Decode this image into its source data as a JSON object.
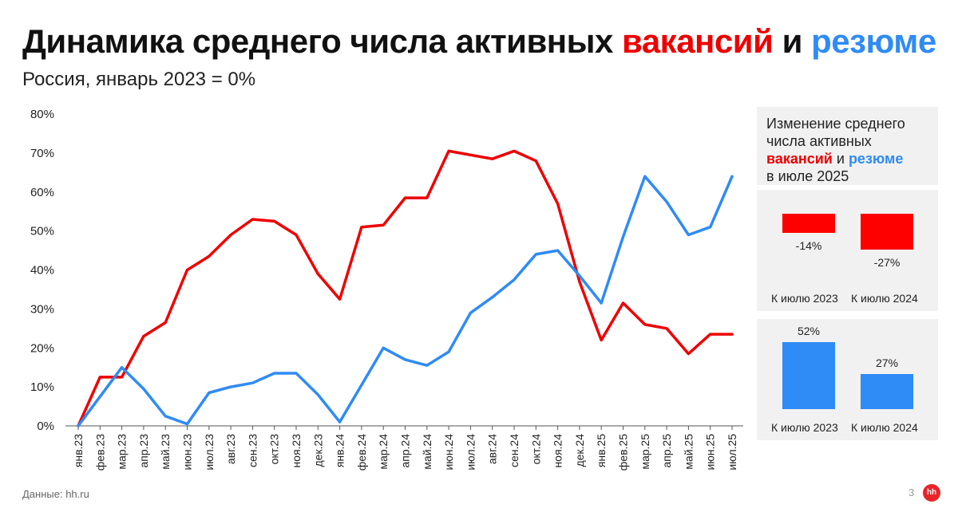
{
  "title": {
    "part1": "Динамика среднего числа активных ",
    "vac": "вакансий",
    "mid": " и ",
    "res": "резюме"
  },
  "subtitle": "Россия, январь 2023 = 0%",
  "side": {
    "line1": "Изменение среднего",
    "line2": "числа активных",
    "vac": "вакансий",
    "and": " и ",
    "res": "резюме",
    "line4": "в июле 2025",
    "vac_panel": {
      "bars": [
        {
          "label": "-14%",
          "value": -14,
          "category": "К июлю 2023"
        },
        {
          "label": "-27%",
          "value": -27,
          "category": "К июлю 2024"
        }
      ]
    },
    "res_panel": {
      "bars": [
        {
          "label": "52%",
          "value": 52,
          "category": "К июлю 2023"
        },
        {
          "label": "27%",
          "value": 27,
          "category": "К июлю 2024"
        }
      ]
    }
  },
  "footer": "Данные: hh.ru",
  "page_number": "3",
  "logo": "hh",
  "colors": {
    "vacancies": "#ee0000",
    "resumes": "#2f8bf5"
  },
  "chart_data": {
    "type": "line",
    "categories": [
      "янв.23",
      "фев.23",
      "мар.23",
      "апр.23",
      "май.23",
      "июн.23",
      "июл.23",
      "авг.23",
      "сен.23",
      "окт.23",
      "ноя.23",
      "дек.23",
      "янв.24",
      "фев.24",
      "мар.24",
      "апр.24",
      "май.24",
      "июн.24",
      "июл.24",
      "авг.24",
      "сен.24",
      "окт.24",
      "ноя.24",
      "дек.24",
      "янв.25",
      "фев.25",
      "мар.25",
      "апр.25",
      "май.25",
      "июн.25",
      "июл.25"
    ],
    "ylim": [
      0,
      80
    ],
    "yticks": [
      "0%",
      "10%",
      "20%",
      "30%",
      "40%",
      "50%",
      "60%",
      "70%",
      "80%"
    ],
    "grid": false,
    "series": [
      {
        "name": "вакансий",
        "color": "#ee0000",
        "values": [
          0,
          12.5,
          12.5,
          23,
          26.5,
          40,
          43.5,
          49,
          53,
          52.5,
          49,
          39,
          32.5,
          51,
          51.5,
          58.5,
          58.5,
          70.5,
          69.5,
          68.5,
          70.5,
          68,
          57,
          37,
          22,
          31.5,
          26,
          25,
          18.5,
          23.5,
          23.5
        ]
      },
      {
        "name": "резюме",
        "color": "#2f8bf5",
        "values": [
          0,
          7.5,
          15,
          9.5,
          2.5,
          0.5,
          8.5,
          10,
          11,
          13.5,
          13.5,
          8,
          1,
          10.5,
          20,
          17,
          15.5,
          19,
          29,
          33,
          37.5,
          44,
          45,
          38.5,
          31.5,
          48.5,
          64,
          57.5,
          49,
          51,
          64
        ]
      }
    ]
  }
}
